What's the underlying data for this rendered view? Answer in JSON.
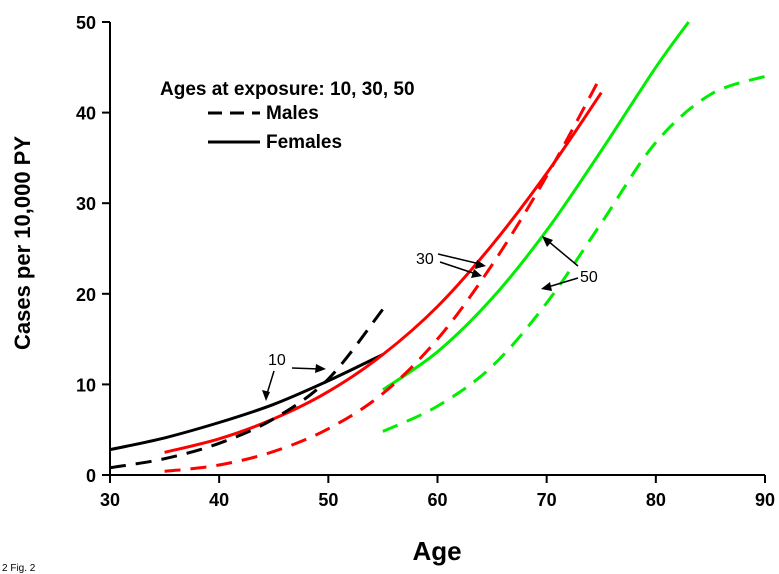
{
  "figure_label": "2 Fig. 2",
  "chart_data": {
    "type": "line",
    "xlabel": "Age",
    "ylabel": "Cases per 10,000 PY",
    "xlim": [
      30,
      90
    ],
    "ylim": [
      0,
      50
    ],
    "xticks": [
      30,
      40,
      50,
      60,
      70,
      80,
      90
    ],
    "yticks": [
      0,
      10,
      20,
      30,
      40,
      50
    ],
    "grid": false,
    "legend": {
      "title": "Ages at exposure: 10, 30, 50",
      "placement": "top-left",
      "entries": [
        {
          "label": "Males",
          "style": "dashed"
        },
        {
          "label": "Females",
          "style": "solid"
        }
      ]
    },
    "annotations": [
      {
        "text": "10",
        "series_color": "#000000"
      },
      {
        "text": "30",
        "series_color": "#ff0000"
      },
      {
        "text": "50",
        "series_color": "#00ee00"
      }
    ],
    "series": [
      {
        "exposure_age": 10,
        "sex": "Females",
        "style": "solid",
        "color": "#000000",
        "x": [
          30,
          35,
          40,
          45,
          50,
          55
        ],
        "y": [
          2.8,
          4.1,
          5.8,
          7.8,
          10.4,
          13.3
        ]
      },
      {
        "exposure_age": 10,
        "sex": "Males",
        "style": "dashed",
        "color": "#000000",
        "x": [
          30,
          35,
          40,
          45,
          50,
          55
        ],
        "y": [
          0.8,
          1.8,
          3.5,
          6.2,
          10.6,
          18.3
        ]
      },
      {
        "exposure_age": 30,
        "sex": "Females",
        "style": "solid",
        "color": "#ff0000",
        "x": [
          35,
          40,
          45,
          50,
          55,
          60,
          65,
          70,
          75
        ],
        "y": [
          2.5,
          4.0,
          6.2,
          9.2,
          13.3,
          18.6,
          25.4,
          33.3,
          42.2
        ]
      },
      {
        "exposure_age": 30,
        "sex": "Males",
        "style": "dashed",
        "color": "#ff0000",
        "x": [
          35,
          40,
          45,
          50,
          55,
          60,
          65,
          70,
          75
        ],
        "y": [
          0.4,
          1.1,
          2.6,
          5.1,
          9.0,
          15.0,
          23.2,
          33.0,
          44.1
        ]
      },
      {
        "exposure_age": 50,
        "sex": "Females",
        "style": "solid",
        "color": "#00ee00",
        "x": [
          55,
          60,
          65,
          70,
          75,
          80,
          83
        ],
        "y": [
          9.4,
          13.6,
          19.5,
          27.0,
          35.8,
          45.0,
          50.0
        ]
      },
      {
        "exposure_age": 50,
        "sex": "Males",
        "style": "dashed",
        "color": "#00ee00",
        "x": [
          55,
          60,
          65,
          70,
          75,
          80,
          85,
          90
        ],
        "y": [
          4.8,
          7.6,
          12.0,
          19.0,
          27.8,
          36.7,
          42.0,
          44.0
        ]
      }
    ]
  }
}
